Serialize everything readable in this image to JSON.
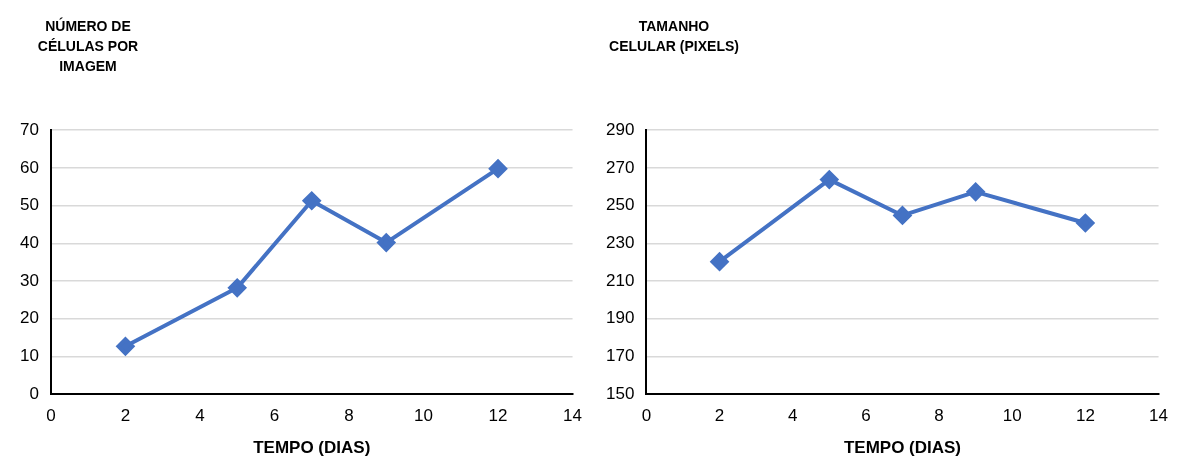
{
  "chart_data": [
    {
      "type": "line",
      "ylabel": "NÚMERO DE CÉLULAS POR IMAGEM",
      "xlabel": "TEMPO (DIAS)",
      "x": [
        2,
        5,
        7,
        9,
        12
      ],
      "series": [
        {
          "color": "#4472c4",
          "values": [
            12.7,
            28.2,
            51.3,
            40.2,
            59.8
          ]
        }
      ],
      "xlim": [
        0,
        14
      ],
      "xticks": [
        0,
        2,
        4,
        6,
        8,
        10,
        12,
        14
      ],
      "ylim": [
        0,
        70
      ],
      "yticks": [
        0,
        10,
        20,
        30,
        40,
        50,
        60,
        70
      ],
      "grid": "y",
      "marker": "diamond",
      "line_style": "solid"
    },
    {
      "type": "line",
      "ylabel": "TAMANHO CELULAR (PIXELS)",
      "xlabel": "TEMPO (DIAS)",
      "x": [
        2,
        5,
        7,
        9,
        12
      ],
      "series": [
        {
          "color": "#4472c4",
          "values": [
            220.3,
            263.8,
            244.8,
            257.3,
            240.8
          ]
        }
      ],
      "xlim": [
        0,
        14
      ],
      "xticks": [
        0,
        2,
        4,
        6,
        8,
        10,
        12,
        14
      ],
      "ylim": [
        150,
        290
      ],
      "yticks": [
        150,
        170,
        190,
        210,
        230,
        250,
        270,
        290
      ],
      "grid": "y",
      "marker": "diamond",
      "line_style": "solid"
    }
  ]
}
